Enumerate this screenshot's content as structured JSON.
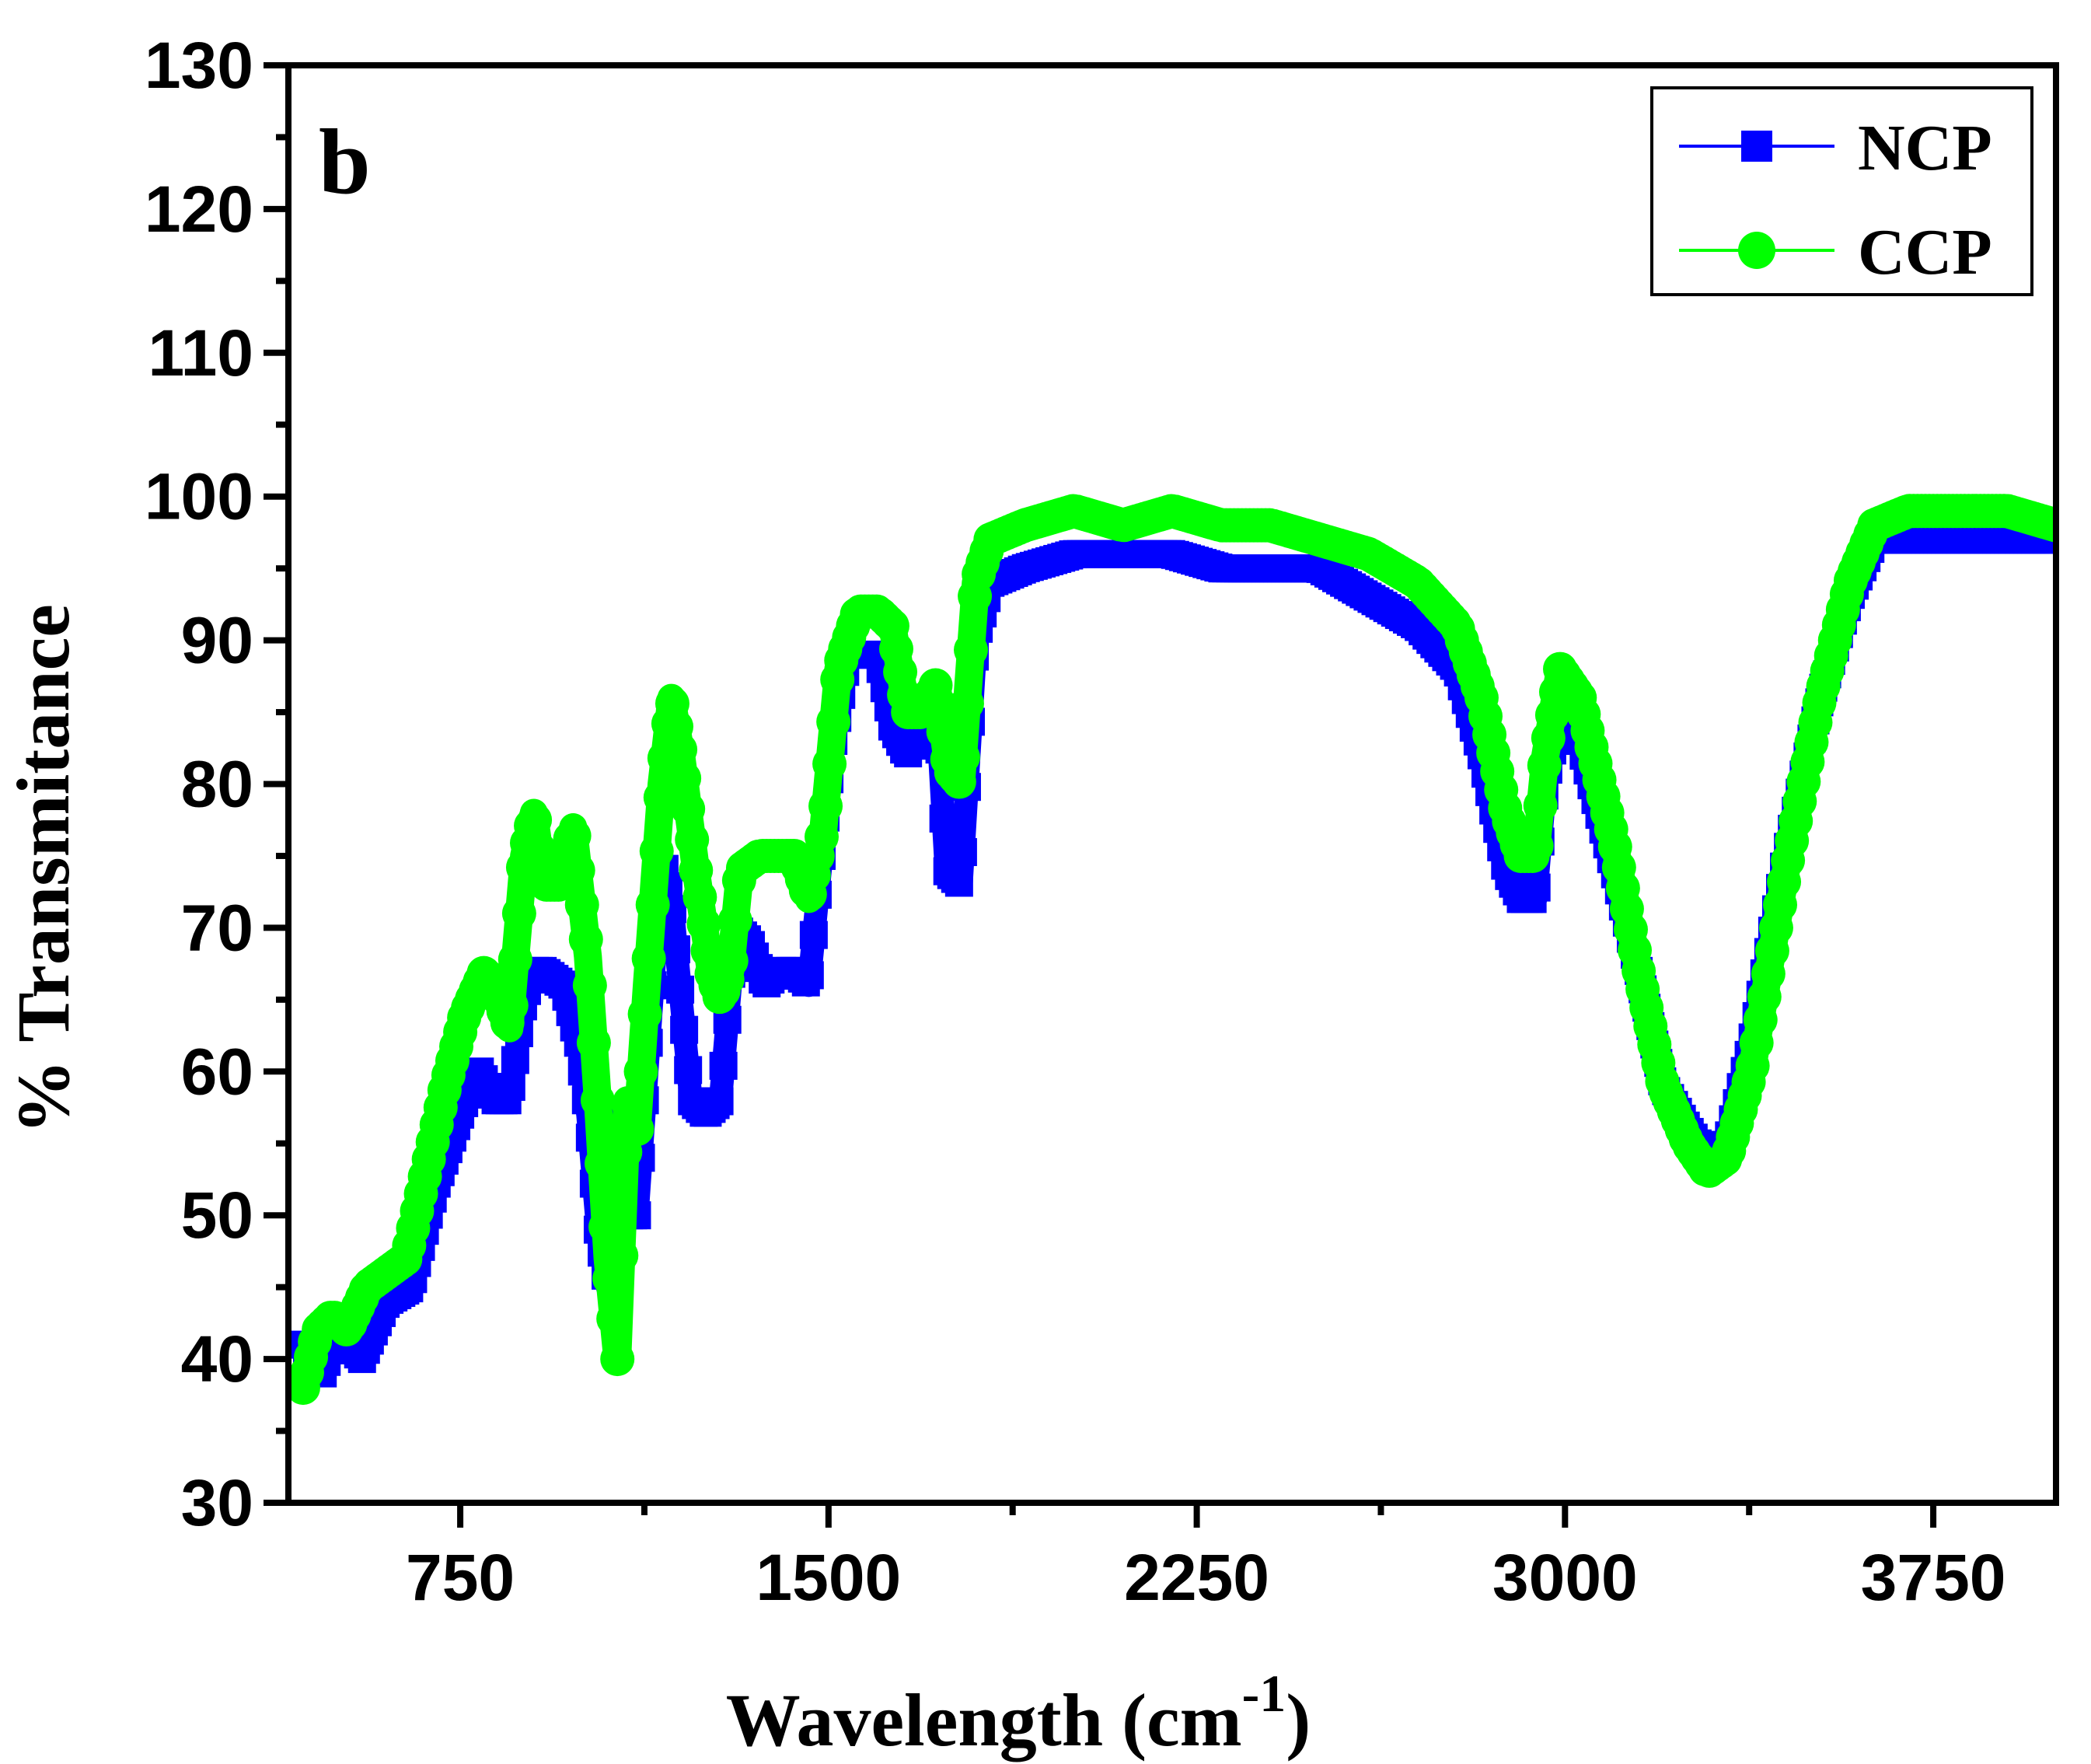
{
  "chart_data": {
    "type": "line",
    "panel_label": "b",
    "xlabel": "Wavelength (cm",
    "xlabel_superscript": "-1",
    "xlabel_suffix": ")",
    "ylabel": "% Transmitance",
    "xlim": [
      400,
      4000
    ],
    "ylim": [
      30,
      130
    ],
    "xticks": [
      750,
      1500,
      2250,
      3000,
      3750
    ],
    "yticks": [
      30,
      40,
      50,
      60,
      70,
      80,
      90,
      100,
      110,
      120,
      130
    ],
    "legend_position": "top-right",
    "series": [
      {
        "name": "NCP",
        "color": "#0000ff",
        "marker": "square",
        "points": [
          [
            430,
            41
          ],
          [
            470,
            39
          ],
          [
            500,
            42
          ],
          [
            550,
            40
          ],
          [
            600,
            44
          ],
          [
            650,
            45
          ],
          [
            700,
            52
          ],
          [
            760,
            58
          ],
          [
            790,
            60
          ],
          [
            820,
            58
          ],
          [
            850,
            58
          ],
          [
            880,
            65
          ],
          [
            900,
            67
          ],
          [
            920,
            67
          ],
          [
            960,
            66
          ],
          [
            990,
            62
          ],
          [
            1010,
            57
          ],
          [
            1030,
            49
          ],
          [
            1050,
            45
          ],
          [
            1070,
            57
          ],
          [
            1090,
            50
          ],
          [
            1110,
            50
          ],
          [
            1130,
            60
          ],
          [
            1160,
            75
          ],
          [
            1180,
            72
          ],
          [
            1200,
            65
          ],
          [
            1220,
            58
          ],
          [
            1250,
            57
          ],
          [
            1280,
            58
          ],
          [
            1310,
            70
          ],
          [
            1340,
            69
          ],
          [
            1370,
            66
          ],
          [
            1400,
            67
          ],
          [
            1430,
            67
          ],
          [
            1460,
            66
          ],
          [
            1480,
            73
          ],
          [
            1510,
            83
          ],
          [
            1540,
            89
          ],
          [
            1570,
            89
          ],
          [
            1600,
            89
          ],
          [
            1630,
            84
          ],
          [
            1660,
            82
          ],
          [
            1690,
            84
          ],
          [
            1720,
            86
          ],
          [
            1740,
            74
          ],
          [
            1770,
            73
          ],
          [
            1800,
            90
          ],
          [
            1830,
            94
          ],
          [
            1900,
            95
          ],
          [
            2000,
            96
          ],
          [
            2100,
            96
          ],
          [
            2200,
            96
          ],
          [
            2300,
            95
          ],
          [
            2400,
            95
          ],
          [
            2500,
            95
          ],
          [
            2600,
            93
          ],
          [
            2700,
            91
          ],
          [
            2780,
            88
          ],
          [
            2830,
            82
          ],
          [
            2880,
            74
          ],
          [
            2910,
            72
          ],
          [
            2940,
            72
          ],
          [
            2960,
            80
          ],
          [
            2990,
            85
          ],
          [
            3030,
            83
          ],
          [
            3100,
            74
          ],
          [
            3150,
            67
          ],
          [
            3200,
            59
          ],
          [
            3250,
            56
          ],
          [
            3290,
            54
          ],
          [
            3330,
            55
          ],
          [
            3380,
            62
          ],
          [
            3450,
            75
          ],
          [
            3520,
            86
          ],
          [
            3580,
            93
          ],
          [
            3630,
            97
          ],
          [
            3700,
            97
          ],
          [
            3800,
            97
          ],
          [
            3900,
            97
          ],
          [
            4000,
            97
          ]
        ]
      },
      {
        "name": "CCP",
        "color": "#00ff00",
        "marker": "circle",
        "points": [
          [
            430,
            38
          ],
          [
            460,
            42
          ],
          [
            490,
            43
          ],
          [
            520,
            42
          ],
          [
            560,
            45
          ],
          [
            600,
            46
          ],
          [
            640,
            47
          ],
          [
            680,
            53
          ],
          [
            720,
            59
          ],
          [
            760,
            64
          ],
          [
            800,
            67
          ],
          [
            830,
            65
          ],
          [
            850,
            63
          ],
          [
            880,
            75
          ],
          [
            900,
            78
          ],
          [
            920,
            73
          ],
          [
            950,
            73
          ],
          [
            980,
            77
          ],
          [
            1010,
            68
          ],
          [
            1030,
            58
          ],
          [
            1050,
            47
          ],
          [
            1070,
            40
          ],
          [
            1090,
            58
          ],
          [
            1110,
            56
          ],
          [
            1130,
            66
          ],
          [
            1160,
            80
          ],
          [
            1180,
            86
          ],
          [
            1200,
            82
          ],
          [
            1230,
            74
          ],
          [
            1260,
            67
          ],
          [
            1280,
            65
          ],
          [
            1300,
            67
          ],
          [
            1320,
            74
          ],
          [
            1360,
            75
          ],
          [
            1400,
            75
          ],
          [
            1430,
            75
          ],
          [
            1460,
            72
          ],
          [
            1490,
            77
          ],
          [
            1520,
            88
          ],
          [
            1560,
            92
          ],
          [
            1600,
            92
          ],
          [
            1630,
            91
          ],
          [
            1660,
            85
          ],
          [
            1690,
            85
          ],
          [
            1720,
            87
          ],
          [
            1745,
            81
          ],
          [
            1770,
            80
          ],
          [
            1800,
            94
          ],
          [
            1830,
            97
          ],
          [
            1900,
            98
          ],
          [
            2000,
            99
          ],
          [
            2100,
            98
          ],
          [
            2200,
            99
          ],
          [
            2300,
            98
          ],
          [
            2400,
            98
          ],
          [
            2500,
            97
          ],
          [
            2600,
            96
          ],
          [
            2700,
            94
          ],
          [
            2780,
            91
          ],
          [
            2830,
            86
          ],
          [
            2880,
            78
          ],
          [
            2910,
            75
          ],
          [
            2940,
            75
          ],
          [
            2960,
            82
          ],
          [
            2990,
            88
          ],
          [
            3030,
            86
          ],
          [
            3100,
            76
          ],
          [
            3150,
            67
          ],
          [
            3200,
            59
          ],
          [
            3250,
            55
          ],
          [
            3290,
            53
          ],
          [
            3330,
            54
          ],
          [
            3380,
            60
          ],
          [
            3450,
            74
          ],
          [
            3520,
            86
          ],
          [
            3580,
            94
          ],
          [
            3630,
            98
          ],
          [
            3700,
            99
          ],
          [
            3800,
            99
          ],
          [
            3900,
            99
          ],
          [
            4000,
            98
          ]
        ]
      }
    ]
  }
}
